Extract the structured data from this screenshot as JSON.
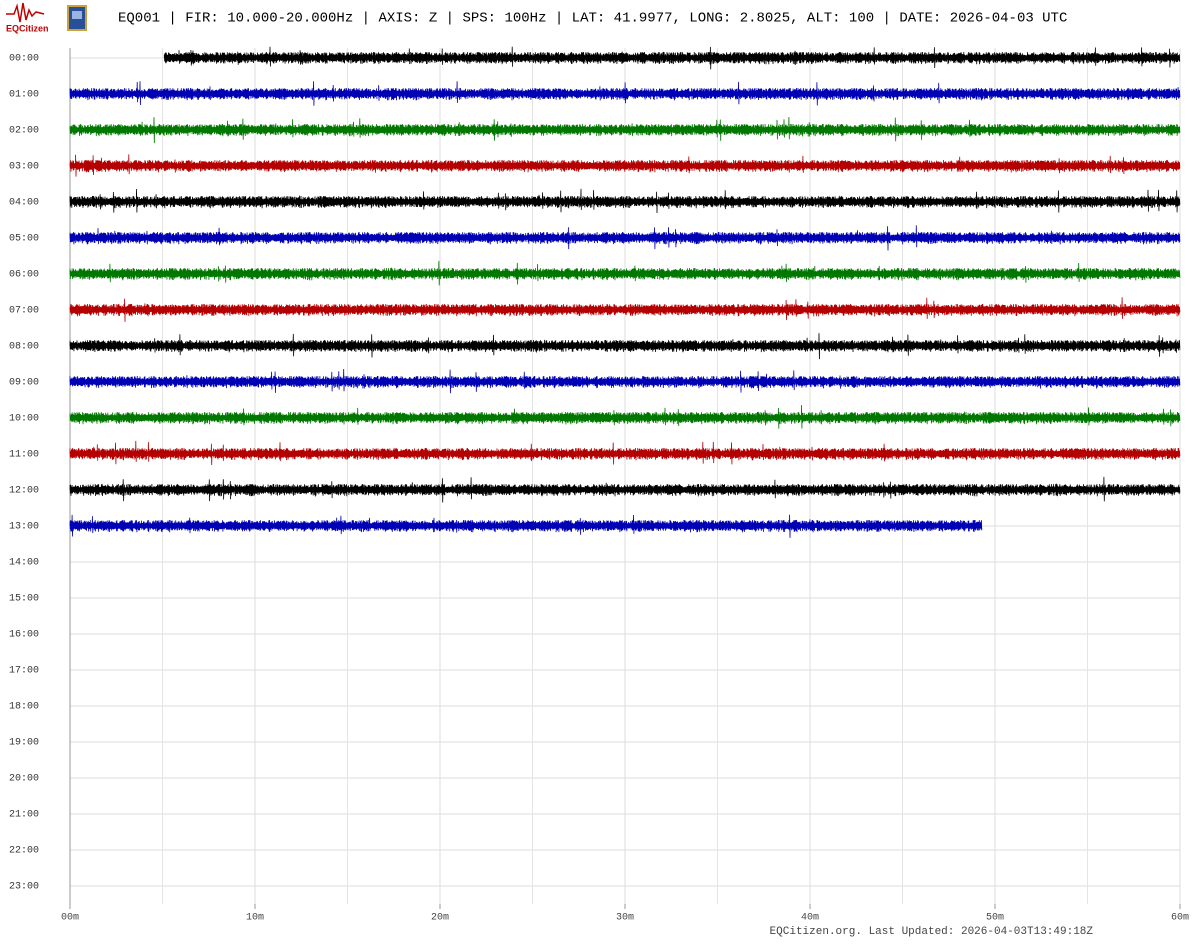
{
  "chart_data": {
    "type": "helicorder",
    "logo_text": "EQCitizen",
    "title": "EQ001 | FIR: 10.000-20.000Hz | AXIS: Z | SPS: 100Hz | LAT: 41.9977, LONG: 2.8025, ALT: 100 | DATE: 2026-04-03 UTC",
    "categories": [
      "00:00",
      "01:00",
      "02:00",
      "03:00",
      "04:00",
      "05:00",
      "06:00",
      "07:00",
      "08:00",
      "09:00",
      "10:00",
      "11:00",
      "12:00",
      "13:00",
      "14:00",
      "15:00",
      "16:00",
      "17:00",
      "18:00",
      "19:00",
      "20:00",
      "21:00",
      "22:00",
      "23:00"
    ],
    "traces": [
      {
        "start": 5.1,
        "end": 60,
        "color": "#000000"
      },
      {
        "start": 0,
        "end": 60,
        "color": "#0000b4"
      },
      {
        "start": 0,
        "end": 60,
        "color": "#007800"
      },
      {
        "start": 0,
        "end": 60,
        "color": "#b40000"
      },
      {
        "start": 0,
        "end": 60,
        "color": "#000000"
      },
      {
        "start": 0,
        "end": 60,
        "color": "#0000b4"
      },
      {
        "start": 0,
        "end": 60,
        "color": "#007800"
      },
      {
        "start": 0,
        "end": 60,
        "color": "#b40000"
      },
      {
        "start": 0,
        "end": 60,
        "color": "#000000"
      },
      {
        "start": 0,
        "end": 60,
        "color": "#0000b4"
      },
      {
        "start": 0,
        "end": 60,
        "color": "#007800"
      },
      {
        "start": 0,
        "end": 60,
        "color": "#b40000"
      },
      {
        "start": 0,
        "end": 60,
        "color": "#000000"
      },
      {
        "start": 0,
        "end": 49.3,
        "color": "#0000b4"
      }
    ],
    "xlim": [
      0,
      60
    ],
    "xticks": [
      {
        "value": 0,
        "label": "00m"
      },
      {
        "value": 10,
        "label": "10m"
      },
      {
        "value": 20,
        "label": "20m"
      },
      {
        "value": 30,
        "label": "30m"
      },
      {
        "value": 40,
        "label": "40m"
      },
      {
        "value": 50,
        "label": "50m"
      },
      {
        "value": 60,
        "label": "60m"
      }
    ],
    "grid": true,
    "note": "EQCitizen.org. Last Updated: 2026-04-03T13:49:18Z"
  }
}
